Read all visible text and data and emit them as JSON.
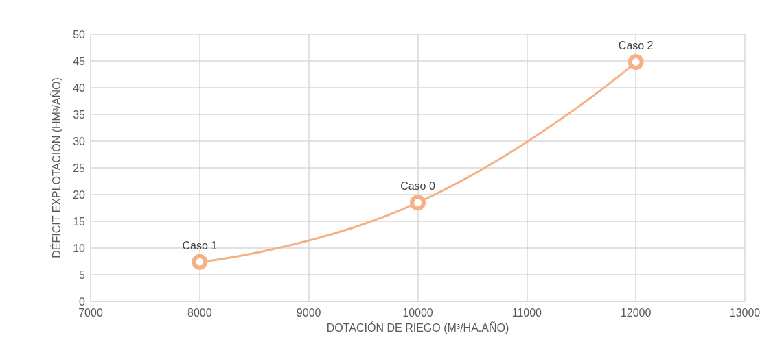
{
  "chart_data": {
    "type": "line",
    "xlabel": "DOTACIÓN DE RIEGO (M³/HA.AÑO)",
    "ylabel": "DÉFICIT EXPLOTACIÓN (HM³/AÑO)",
    "x": [
      8000,
      10000,
      12000
    ],
    "series": [
      {
        "color": "#f4b183",
        "values": [
          7.4,
          18.5,
          44.8
        ]
      }
    ],
    "xlim": [
      7000,
      13000
    ],
    "xticks": [
      7000,
      8000,
      9000,
      10000,
      11000,
      12000,
      13000
    ],
    "ylim": [
      0,
      50
    ],
    "yticks": [
      0,
      5,
      10,
      15,
      20,
      25,
      30,
      35,
      40,
      45,
      50
    ],
    "grid": true,
    "marker": "circle",
    "line_style": "solid",
    "annotations": [
      {
        "text": "Caso 1",
        "x": 8000,
        "y": 7.4
      },
      {
        "text": "Caso 0",
        "x": 10000,
        "y": 18.5
      },
      {
        "text": "Caso 2",
        "x": 12000,
        "y": 44.8
      }
    ]
  }
}
